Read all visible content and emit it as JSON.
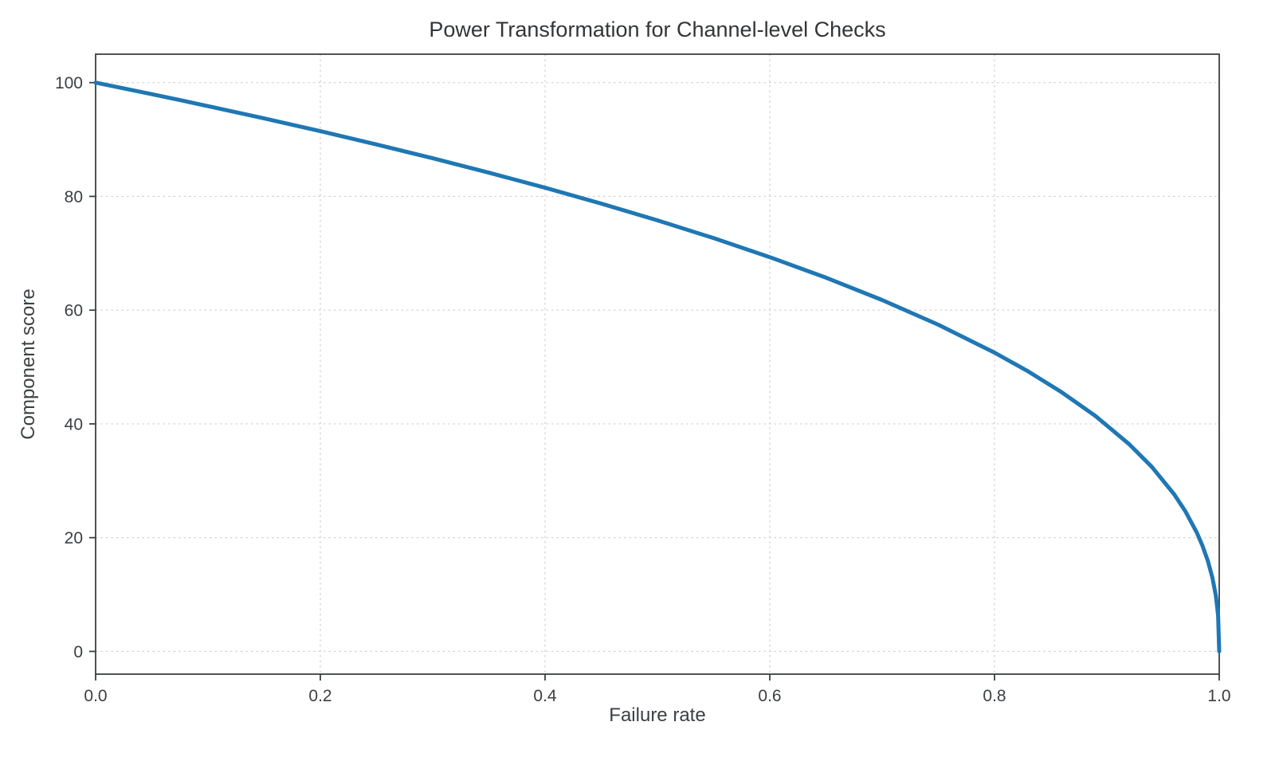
{
  "page": {
    "background_color": "#ffffff",
    "text_color": "#3c4043"
  },
  "chart_data": {
    "type": "line",
    "title": "Power Transformation for Channel-level Checks",
    "xlabel": "Failure rate",
    "ylabel": "Component score",
    "xlim": [
      0.0,
      1.0
    ],
    "ylim": [
      0,
      100
    ],
    "xticks": [
      0.0,
      0.2,
      0.4,
      0.6,
      0.8,
      1.0
    ],
    "xtick_labels": [
      "0.0",
      "0.2",
      "0.4",
      "0.6",
      "0.8",
      "1.0"
    ],
    "yticks": [
      0,
      20,
      40,
      60,
      80,
      100
    ],
    "ytick_labels": [
      "0",
      "20",
      "40",
      "60",
      "80",
      "100"
    ],
    "grid": true,
    "grid_style": "dashed",
    "legend": false,
    "line_color": "#1f77b4",
    "line_width": 5,
    "series": [
      {
        "name": "component-score-curve",
        "x": [
          0,
          0.025,
          0.05,
          0.075,
          0.1,
          0.15,
          0.2,
          0.25,
          0.3,
          0.35,
          0.4,
          0.45,
          0.5,
          0.55,
          0.6,
          0.65,
          0.7,
          0.75,
          0.8,
          0.83,
          0.86,
          0.89,
          0.92,
          0.94,
          0.96,
          0.97,
          0.98,
          0.985,
          0.99,
          0.994,
          0.997,
          0.999,
          1.0
        ],
        "y": [
          100,
          98.99,
          97.97,
          96.93,
          95.87,
          93.71,
          91.46,
          89.13,
          86.7,
          84.17,
          81.52,
          78.73,
          75.79,
          72.66,
          69.31,
          65.71,
          61.78,
          57.43,
          52.53,
          49.22,
          45.54,
          41.36,
          36.41,
          32.45,
          27.59,
          24.6,
          20.91,
          18.64,
          15.85,
          12.92,
          9.79,
          6.31,
          0
        ]
      }
    ]
  }
}
